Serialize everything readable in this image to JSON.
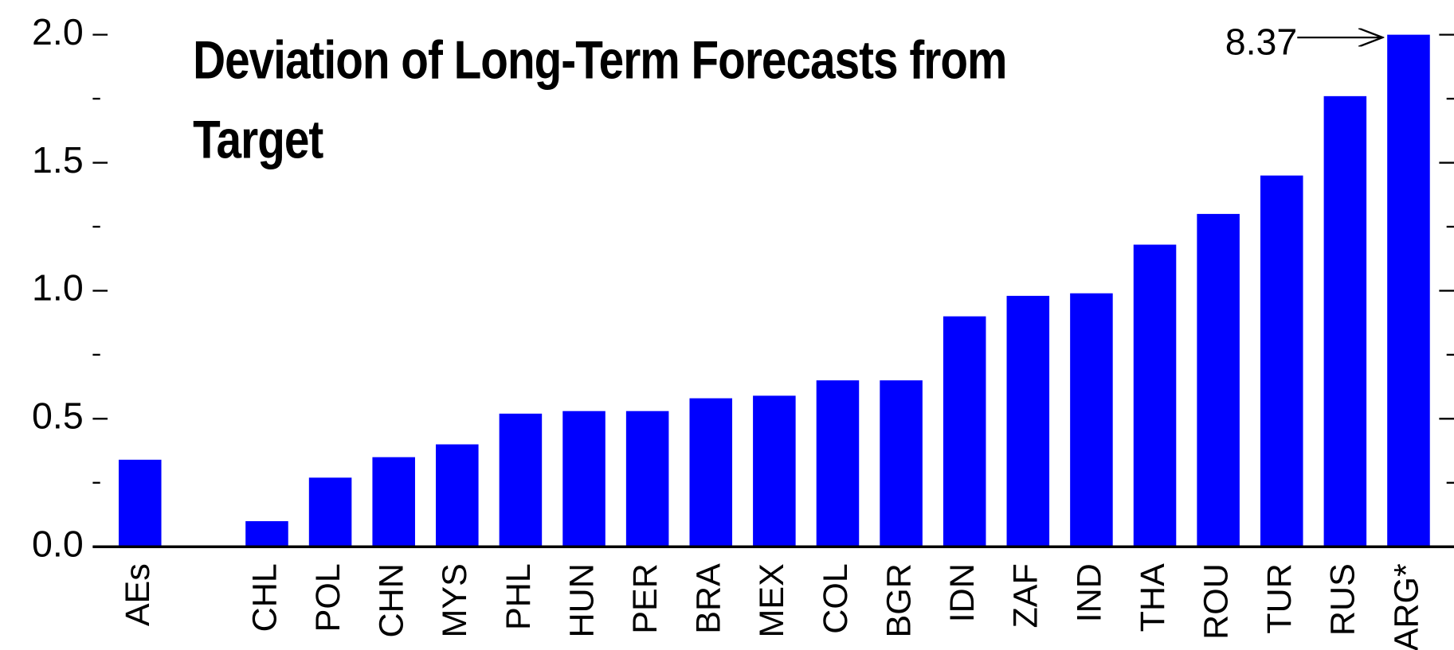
{
  "chart_data": {
    "type": "bar",
    "title": "Deviation of Long-Term Forecasts from Target",
    "categories": [
      "AEs",
      null,
      "CHL",
      "POL",
      "CHN",
      "MYS",
      "PHL",
      "HUN",
      "PER",
      "BRA",
      "MEX",
      "COL",
      "BGR",
      "IDN",
      "ZAF",
      "IND",
      "THA",
      "ROU",
      "TUR",
      "RUS",
      "ARG*"
    ],
    "values": [
      0.34,
      null,
      0.1,
      0.27,
      0.35,
      0.4,
      0.52,
      0.53,
      0.53,
      0.58,
      0.59,
      0.65,
      0.65,
      0.9,
      0.98,
      0.99,
      1.18,
      1.3,
      1.45,
      1.76,
      8.37
    ],
    "value_labels": [
      null,
      null,
      null,
      null,
      null,
      null,
      null,
      null,
      null,
      null,
      null,
      null,
      null,
      null,
      null,
      null,
      null,
      null,
      null,
      null,
      "8.37"
    ],
    "color": "#0000ff",
    "ylim": [
      0,
      2
    ],
    "yticks": [
      {
        "value": 0,
        "label": "0.0"
      },
      {
        "value": 0.5,
        "label": "0.5"
      },
      {
        "value": 1,
        "label": "1.0"
      },
      {
        "value": 1.5,
        "label": "1.5"
      },
      {
        "value": 2,
        "label": "2.0"
      }
    ],
    "minor_yticks": [
      0.25,
      0.75,
      1.25,
      1.75
    ],
    "grid": false
  }
}
